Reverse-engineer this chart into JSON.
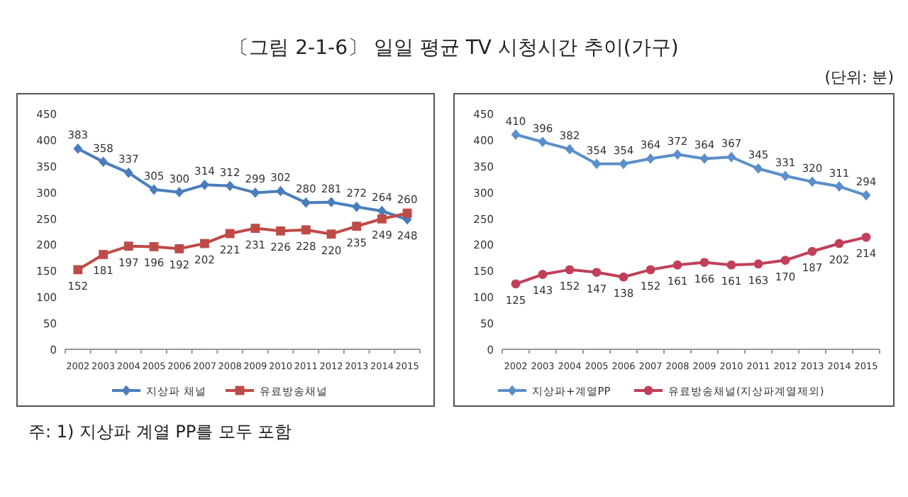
{
  "chart_data": [
    {
      "type": "line",
      "title": "〔그림 2-1-6〕 일일 평균 TV 시청시간 추이(가구)",
      "categories": [
        "2002",
        "2003",
        "2004",
        "2005",
        "2006",
        "2007",
        "2008",
        "2009",
        "2010",
        "2011",
        "2012",
        "2013",
        "2014",
        "2015"
      ],
      "series": [
        {
          "name": "지상파 채널",
          "color": "#4a7ebb",
          "marker": "diamond",
          "values": [
            383,
            358,
            337,
            305,
            300,
            314,
            312,
            299,
            302,
            280,
            281,
            272,
            264,
            248
          ]
        },
        {
          "name": "유료방송채널",
          "color": "#be4b48",
          "marker": "square",
          "values": [
            152,
            181,
            197,
            196,
            192,
            202,
            221,
            231,
            226,
            228,
            220,
            235,
            249,
            260
          ]
        }
      ],
      "ylim": [
        0,
        450
      ],
      "yticks": [
        0,
        50,
        100,
        150,
        200,
        250,
        300,
        350,
        400,
        450
      ],
      "data_labels": true,
      "legend": "bottom",
      "grid": false,
      "annotations": [
        "주: 1) 지상파 계열 PP를 모두 포함"
      ]
    },
    {
      "type": "line",
      "categories": [
        "2002",
        "2003",
        "2004",
        "2005",
        "2006",
        "2007",
        "2008",
        "2009",
        "2010",
        "2011",
        "2012",
        "2013",
        "2014",
        "2015"
      ],
      "series": [
        {
          "name": "지상파+계열PP",
          "color": "#5b8fc9",
          "marker": "diamond",
          "values": [
            410,
            396,
            382,
            354,
            354,
            364,
            372,
            364,
            367,
            345,
            331,
            320,
            311,
            294
          ]
        },
        {
          "name": "유료방송채널(지상파계열제외)",
          "color": "#c0405a",
          "marker": "circle",
          "values": [
            125,
            143,
            152,
            147,
            138,
            152,
            161,
            166,
            161,
            163,
            170,
            187,
            202,
            214
          ]
        }
      ],
      "ylim": [
        0,
        450
      ],
      "yticks": [
        0,
        50,
        100,
        150,
        200,
        250,
        300,
        350,
        400,
        450
      ],
      "data_labels": true,
      "legend": "bottom",
      "grid": false,
      "annotations": [
        "(단위: 분)"
      ]
    }
  ]
}
